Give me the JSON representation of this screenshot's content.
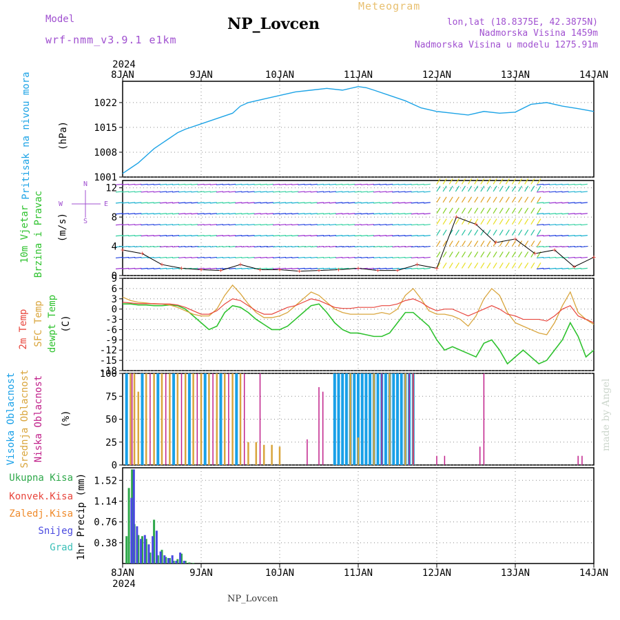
{
  "header": {
    "model_label": "Model",
    "model_name": "wrf-nmm_v3.9.1 e1km",
    "title": "NP_Lovcen",
    "subtitle": "Meteogram",
    "lonlat": "lon,lat (18.8375E, 42.3875N)",
    "elevation": "Nadmorska Visina 1459m",
    "model_elevation": "Nadmorska Visina u modelu 1275.91m",
    "footer": "NP_Lovcen",
    "credit": "made by Angel"
  },
  "colors": {
    "pressure": "#1ca3e6",
    "temp2m": "#e8453c",
    "sfc_temp": "#d9a53c",
    "dewpoint": "#2ec22e",
    "cloud_high": "#18a0e8",
    "cloud_mid": "#d9a53c",
    "cloud_low": "#c0208a",
    "precip_total": "#2ea84a",
    "precip_snow": "#4848e0",
    "legend_total": "#2ea84a",
    "legend_konv": "#e8453c",
    "legend_zaledj": "#ef8a2a",
    "legend_snijeg": "#4848e0",
    "legend_grad": "#3cc0b8",
    "header_purple": "#a050d0",
    "header_gold": "#e8c070"
  },
  "chart_data": [
    {
      "type": "line",
      "panel": "pressure",
      "title": "",
      "year_label": "2024",
      "x_ticks": [
        "8JAN",
        "9JAN",
        "10JAN",
        "11JAN",
        "12JAN",
        "13JAN",
        "14JAN"
      ],
      "ylabel": [
        "Pritisak na nivou mora",
        "(hPa)"
      ],
      "ylim": [
        1001,
        1028
      ],
      "y_ticks": [
        1001,
        1008,
        1015,
        1022
      ],
      "grid": true,
      "x_days": [
        0,
        0.1,
        0.2,
        0.3,
        0.4,
        0.5,
        0.6,
        0.7,
        0.8,
        1.0,
        1.2,
        1.4,
        1.5,
        1.6,
        1.8,
        2.0,
        2.2,
        2.4,
        2.6,
        2.8,
        3.0,
        3.1,
        3.2,
        3.4,
        3.6,
        3.8,
        4.0,
        4.2,
        4.4,
        4.6,
        4.8,
        5.0,
        5.2,
        5.4,
        5.6,
        5.8,
        6.0
      ],
      "series": [
        {
          "values": [
            1002,
            1003.5,
            1005,
            1007,
            1009,
            1010.5,
            1012,
            1013.5,
            1014.5,
            1016,
            1017.5,
            1019,
            1021,
            1022,
            1023,
            1024,
            1025,
            1025.5,
            1026,
            1025.5,
            1026.5,
            1026.2,
            1025.5,
            1024,
            1022.5,
            1020.5,
            1019.5,
            1019,
            1018.5,
            1019.5,
            1019,
            1019.3,
            1021.5,
            1022,
            1021,
            1020.3,
            1019.5
          ]
        }
      ]
    },
    {
      "type": "scatter",
      "panel": "wind",
      "ylabel": [
        "10m Vjetar",
        "Brzina i Pravac",
        "(m/s)"
      ],
      "direction_key": [
        "N",
        "S",
        "W",
        "E"
      ],
      "ylim": [
        0,
        13
      ],
      "y_ticks": [
        0,
        4,
        8,
        12
      ],
      "grid": true,
      "x_days": [
        0,
        0.25,
        0.5,
        0.75,
        1.0,
        1.25,
        1.5,
        1.75,
        2.0,
        2.25,
        2.5,
        2.75,
        3.0,
        3.25,
        3.5,
        3.75,
        4.0,
        4.25,
        4.5,
        4.75,
        5.0,
        5.25,
        5.5,
        5.75,
        6.0
      ],
      "series": [
        {
          "values": [
            3.5,
            3,
            1.5,
            1,
            0.8,
            0.7,
            1.5,
            0.8,
            0.8,
            0.6,
            0.7,
            0.8,
            1,
            0.7,
            0.7,
            1.5,
            1,
            8,
            7,
            4.5,
            5,
            3,
            3.5,
            1.2,
            2.5
          ]
        }
      ]
    },
    {
      "type": "line",
      "panel": "temperature",
      "ylabel": [
        "2m Temp",
        "SFC Temp",
        "dewpt Temp",
        "(C)"
      ],
      "ylim": [
        -18,
        9
      ],
      "y_ticks": [
        -18,
        -15,
        -12,
        -9,
        -6,
        -3,
        0,
        3,
        6,
        9
      ],
      "grid": true,
      "x_days": [
        0,
        0.1,
        0.2,
        0.3,
        0.4,
        0.5,
        0.6,
        0.7,
        0.8,
        0.9,
        1.0,
        1.1,
        1.2,
        1.3,
        1.4,
        1.5,
        1.6,
        1.7,
        1.8,
        1.9,
        2.0,
        2.1,
        2.2,
        2.3,
        2.4,
        2.5,
        2.6,
        2.7,
        2.8,
        2.9,
        3.0,
        3.1,
        3.2,
        3.3,
        3.4,
        3.5,
        3.6,
        3.7,
        3.8,
        3.9,
        4.0,
        4.1,
        4.2,
        4.3,
        4.4,
        4.5,
        4.6,
        4.7,
        4.8,
        4.9,
        5.0,
        5.1,
        5.2,
        5.3,
        5.4,
        5.5,
        5.6,
        5.7,
        5.8,
        5.9,
        6.0
      ],
      "series": [
        {
          "name": "2m Temp",
          "values": [
            2,
            1.8,
            1.6,
            1.6,
            1.6,
            1.5,
            1.5,
            1.2,
            0.5,
            -0.5,
            -1.5,
            -1.5,
            -0.5,
            1.5,
            3,
            2.5,
            1,
            -0.5,
            -1.5,
            -1.5,
            -0.5,
            0.5,
            1,
            2,
            3,
            2.5,
            1.5,
            0.5,
            0.2,
            0.2,
            0.5,
            0.5,
            0.5,
            1,
            1,
            1.5,
            2.5,
            3,
            2,
            0.5,
            -0.5,
            0,
            0,
            -1,
            -2,
            -1,
            0,
            1,
            0,
            -1.5,
            -2,
            -3,
            -3,
            -3,
            -3.5,
            -2,
            0,
            1,
            -2,
            -3,
            -4
          ]
        },
        {
          "name": "SFC Temp",
          "values": [
            3.5,
            2.5,
            2,
            1.8,
            1.5,
            1.5,
            1.2,
            0.5,
            -0.5,
            -1.5,
            -2,
            -2,
            0,
            4,
            7,
            4.5,
            1.5,
            -1,
            -2.5,
            -2.5,
            -2,
            -1,
            1,
            3,
            5,
            4,
            2,
            0,
            -1,
            -1.5,
            -1.5,
            -1.5,
            -1.5,
            -1,
            -1.5,
            0,
            4,
            6,
            3,
            -0.5,
            -1.5,
            -1.5,
            -2,
            -3,
            -5,
            -2,
            3,
            6,
            4,
            -1,
            -4,
            -5,
            -6,
            -7,
            -7.5,
            -4,
            1,
            5,
            -1,
            -3,
            -4.5
          ]
        },
        {
          "name": "dewpt Temp",
          "values": [
            1.5,
            1.5,
            1.2,
            1.2,
            1,
            1,
            1.2,
            1,
            0,
            -2,
            -4,
            -6,
            -5,
            -1,
            1,
            0.5,
            -1,
            -3,
            -4.5,
            -6,
            -6,
            -5,
            -3,
            -1,
            1,
            1.5,
            -1,
            -4,
            -6,
            -7,
            -7,
            -7.5,
            -8,
            -8,
            -7,
            -4,
            -1,
            -1,
            -3,
            -5,
            -9,
            -12,
            -11,
            -12,
            -13,
            -14,
            -10,
            -9,
            -12,
            -16,
            -14,
            -12,
            -14,
            -16,
            -15,
            -12,
            -9,
            -4,
            -8,
            -14,
            -12
          ]
        }
      ]
    },
    {
      "type": "bar",
      "panel": "clouds",
      "ylabel": [
        "Visoka Oblacnost",
        "Srednja Oblacnost",
        "Niska Oblacnost",
        "(%)"
      ],
      "ylim": [
        0,
        100
      ],
      "y_ticks": [
        0,
        25,
        50,
        75,
        100
      ],
      "grid": true,
      "series": [
        {
          "name": "Visoka Oblacnost",
          "x": [
            0.05,
            0.25,
            0.45,
            0.65,
            0.85,
            1.05,
            1.25,
            1.45,
            2.7,
            2.75,
            2.8,
            2.85,
            2.9,
            2.95,
            3.0,
            3.05,
            3.1,
            3.15,
            3.2,
            3.25,
            3.3,
            3.35,
            3.4,
            3.45,
            3.5,
            3.55,
            3.6,
            3.65,
            3.7
          ],
          "values": [
            100,
            100,
            100,
            100,
            100,
            100,
            100,
            100,
            100,
            100,
            100,
            100,
            100,
            100,
            100,
            100,
            100,
            100,
            100,
            100,
            100,
            100,
            100,
            100,
            100,
            100,
            100,
            100,
            100
          ]
        },
        {
          "name": "Srednja Oblacnost",
          "x": [
            0.1,
            0.15,
            0.2,
            0.3,
            0.4,
            0.5,
            0.6,
            0.7,
            0.8,
            0.9,
            1.0,
            1.1,
            1.2,
            1.3,
            1.4,
            1.5,
            1.6,
            1.7,
            1.8,
            1.9,
            2.0,
            2.9,
            3.0,
            3.2,
            3.4,
            3.6,
            3.7
          ],
          "values": [
            100,
            100,
            80,
            100,
            100,
            100,
            100,
            100,
            100,
            100,
            100,
            100,
            100,
            100,
            100,
            100,
            25,
            25,
            22,
            22,
            20,
            100,
            30,
            100,
            100,
            100,
            100
          ]
        },
        {
          "name": "Niska Oblacnost",
          "x": [
            0.12,
            0.35,
            0.55,
            0.75,
            0.95,
            1.15,
            1.35,
            1.55,
            1.75,
            2.35,
            2.5,
            2.55,
            3.3,
            3.65,
            3.7,
            4.0,
            4.1,
            4.55,
            4.6,
            5.8,
            5.85
          ],
          "values": [
            100,
            100,
            100,
            100,
            100,
            100,
            100,
            100,
            100,
            28,
            85,
            80,
            100,
            100,
            100,
            10,
            10,
            20,
            100,
            10,
            10
          ]
        }
      ]
    },
    {
      "type": "bar",
      "panel": "precip",
      "ylabel": [
        "1hr Precip (mm)"
      ],
      "legend": [
        "Ukupna Kisa",
        "Konvek.Kisa",
        "Zaledj.Kisa",
        "Snijeg",
        "Grad"
      ],
      "ylim": [
        0,
        1.75
      ],
      "y_ticks": [
        0.38,
        0.76,
        1.14,
        1.52
      ],
      "grid": true,
      "series": [
        {
          "name": "Ukupna Kisa",
          "x": [
            0.05,
            0.08,
            0.12,
            0.15,
            0.2,
            0.25,
            0.3,
            0.35,
            0.4,
            0.45,
            0.5,
            0.55,
            0.6,
            0.65,
            0.7,
            0.75,
            0.8,
            0.85,
            0.9
          ],
          "values": [
            0.5,
            1.38,
            1.72,
            0.72,
            0.52,
            0.5,
            0.45,
            0.2,
            0.8,
            0.15,
            0.25,
            0.12,
            0.1,
            0.05,
            0.08,
            0.18,
            0.05,
            0.02,
            0.01
          ]
        },
        {
          "name": "Snijeg",
          "x": [
            0.1,
            0.13,
            0.17,
            0.22,
            0.27,
            0.32,
            0.37,
            0.42,
            0.47,
            0.52,
            0.57,
            0.62,
            0.67,
            0.72,
            0.77
          ],
          "values": [
            1.2,
            1.72,
            0.68,
            0.45,
            0.52,
            0.35,
            0.5,
            0.6,
            0.22,
            0.15,
            0.1,
            0.15,
            0.05,
            0.2,
            0.05
          ]
        }
      ]
    }
  ],
  "x_axis": {
    "year": "2024",
    "ticks": [
      "8JAN",
      "9JAN",
      "10JAN",
      "11JAN",
      "12JAN",
      "13JAN",
      "14JAN"
    ]
  }
}
